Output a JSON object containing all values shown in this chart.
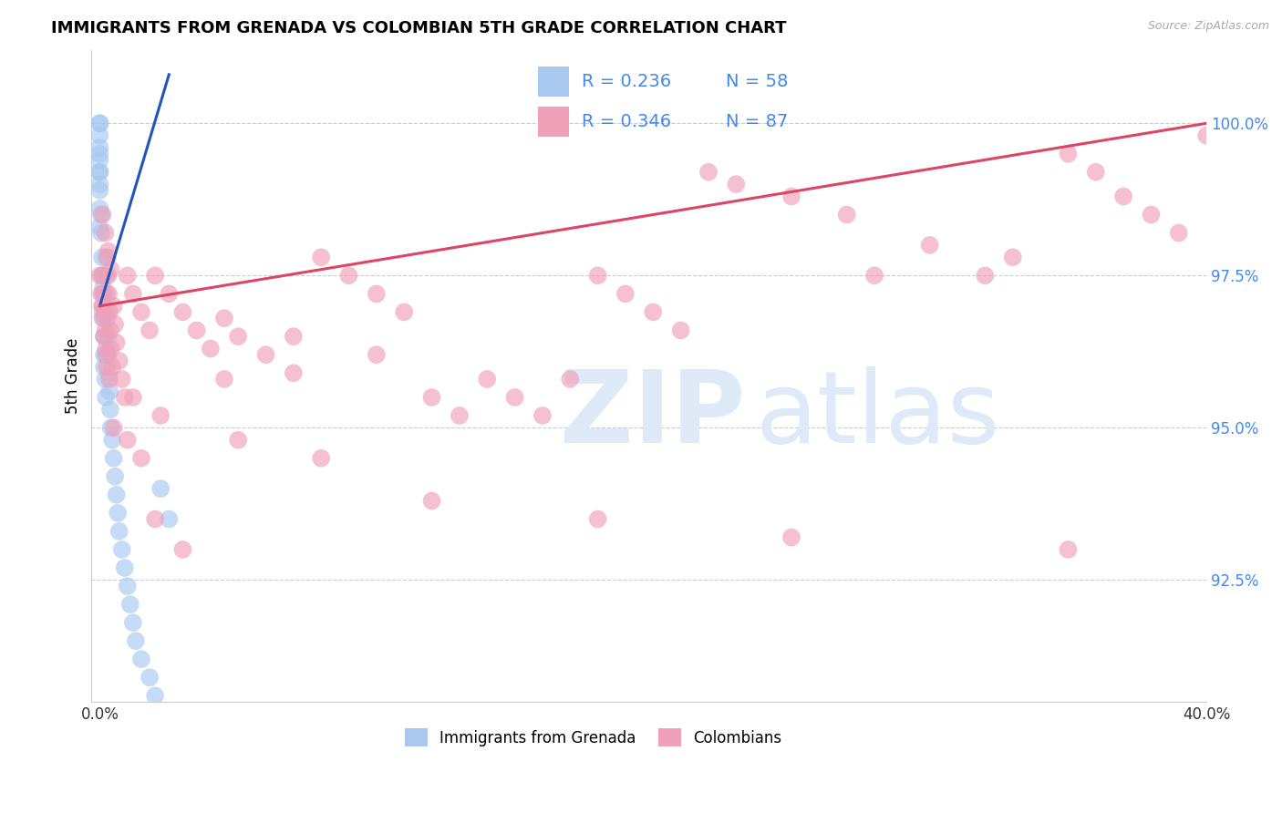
{
  "title": "IMMIGRANTS FROM GRENADA VS COLOMBIAN 5TH GRADE CORRELATION CHART",
  "source_text": "Source: ZipAtlas.com",
  "ylabel": "5th Grade",
  "xlim": [
    -0.3,
    40.0
  ],
  "ylim": [
    90.5,
    101.2
  ],
  "yticks": [
    92.5,
    95.0,
    97.5,
    100.0
  ],
  "ytick_labels": [
    "92.5%",
    "95.0%",
    "97.5%",
    "100.0%"
  ],
  "xtick_labels": [
    "0.0%",
    "",
    "",
    "",
    "40.0%"
  ],
  "legend_label1": "Immigrants from Grenada",
  "legend_label2": "Colombians",
  "R1": 0.236,
  "N1": 58,
  "R2": 0.346,
  "N2": 87,
  "color_blue": "#a8c8f0",
  "color_pink": "#f0a0b8",
  "trend_color_blue": "#2255bb",
  "trend_color_pink": "#dd4466",
  "grid_color": "#cccccc",
  "ytick_color": "#4488ee",
  "blue_x": [
    0.0,
    0.0,
    0.0,
    0.0,
    0.0,
    0.0,
    0.0,
    0.05,
    0.05,
    0.08,
    0.08,
    0.1,
    0.1,
    0.1,
    0.12,
    0.12,
    0.15,
    0.15,
    0.15,
    0.15,
    0.18,
    0.18,
    0.2,
    0.2,
    0.2,
    0.22,
    0.22,
    0.25,
    0.25,
    0.28,
    0.3,
    0.3,
    0.32,
    0.35,
    0.38,
    0.4,
    0.45,
    0.5,
    0.55,
    0.6,
    0.65,
    0.7,
    0.8,
    0.9,
    1.0,
    1.1,
    1.2,
    1.3,
    1.5,
    1.8,
    2.0,
    2.2,
    2.5,
    0.0,
    0.0,
    0.0,
    0.0,
    0.0
  ],
  "blue_y": [
    100.0,
    100.0,
    99.8,
    99.6,
    99.4,
    99.2,
    99.0,
    98.5,
    98.2,
    97.8,
    97.5,
    97.2,
    96.9,
    97.5,
    97.3,
    97.0,
    96.8,
    96.5,
    96.2,
    96.0,
    97.2,
    96.8,
    96.5,
    96.2,
    95.8,
    95.5,
    97.8,
    97.5,
    97.2,
    96.8,
    96.5,
    96.2,
    95.9,
    95.6,
    95.3,
    95.0,
    94.8,
    94.5,
    94.2,
    93.9,
    93.6,
    93.3,
    93.0,
    92.7,
    92.4,
    92.1,
    91.8,
    91.5,
    91.2,
    90.9,
    90.6,
    94.0,
    93.5,
    99.5,
    99.2,
    98.9,
    98.6,
    98.3
  ],
  "pink_x": [
    0.0,
    0.05,
    0.08,
    0.1,
    0.12,
    0.15,
    0.18,
    0.2,
    0.22,
    0.25,
    0.28,
    0.3,
    0.32,
    0.35,
    0.38,
    0.4,
    0.45,
    0.5,
    0.55,
    0.6,
    0.7,
    0.8,
    0.9,
    1.0,
    1.2,
    1.5,
    1.8,
    2.0,
    2.5,
    3.0,
    3.5,
    4.0,
    4.5,
    5.0,
    6.0,
    7.0,
    8.0,
    9.0,
    10.0,
    11.0,
    12.0,
    13.0,
    14.0,
    15.0,
    16.0,
    17.0,
    18.0,
    19.0,
    20.0,
    21.0,
    22.0,
    23.0,
    25.0,
    27.0,
    28.0,
    30.0,
    32.0,
    33.0,
    35.0,
    36.0,
    37.0,
    38.0,
    39.0,
    40.0,
    0.1,
    0.2,
    0.3,
    0.4,
    0.5,
    1.0,
    1.5,
    2.0,
    3.0,
    5.0,
    8.0,
    12.0,
    18.0,
    25.0,
    35.0,
    0.15,
    0.25,
    0.35,
    1.2,
    2.2,
    4.5,
    7.0,
    10.0
  ],
  "pink_y": [
    97.5,
    97.2,
    97.0,
    96.8,
    97.5,
    97.2,
    96.9,
    96.6,
    96.3,
    96.0,
    97.8,
    97.5,
    97.2,
    96.9,
    96.6,
    96.3,
    96.0,
    97.0,
    96.7,
    96.4,
    96.1,
    95.8,
    95.5,
    97.5,
    97.2,
    96.9,
    96.6,
    97.5,
    97.2,
    96.9,
    96.6,
    96.3,
    96.8,
    96.5,
    96.2,
    95.9,
    97.8,
    97.5,
    97.2,
    96.9,
    95.5,
    95.2,
    95.8,
    95.5,
    95.2,
    95.8,
    97.5,
    97.2,
    96.9,
    96.6,
    99.2,
    99.0,
    98.8,
    98.5,
    97.5,
    98.0,
    97.5,
    97.8,
    99.5,
    99.2,
    98.8,
    98.5,
    98.2,
    99.8,
    98.5,
    98.2,
    97.9,
    97.6,
    95.0,
    94.8,
    94.5,
    93.5,
    93.0,
    94.8,
    94.5,
    93.8,
    93.5,
    93.2,
    93.0,
    96.5,
    96.2,
    95.8,
    95.5,
    95.2,
    95.8,
    96.5,
    96.2
  ]
}
